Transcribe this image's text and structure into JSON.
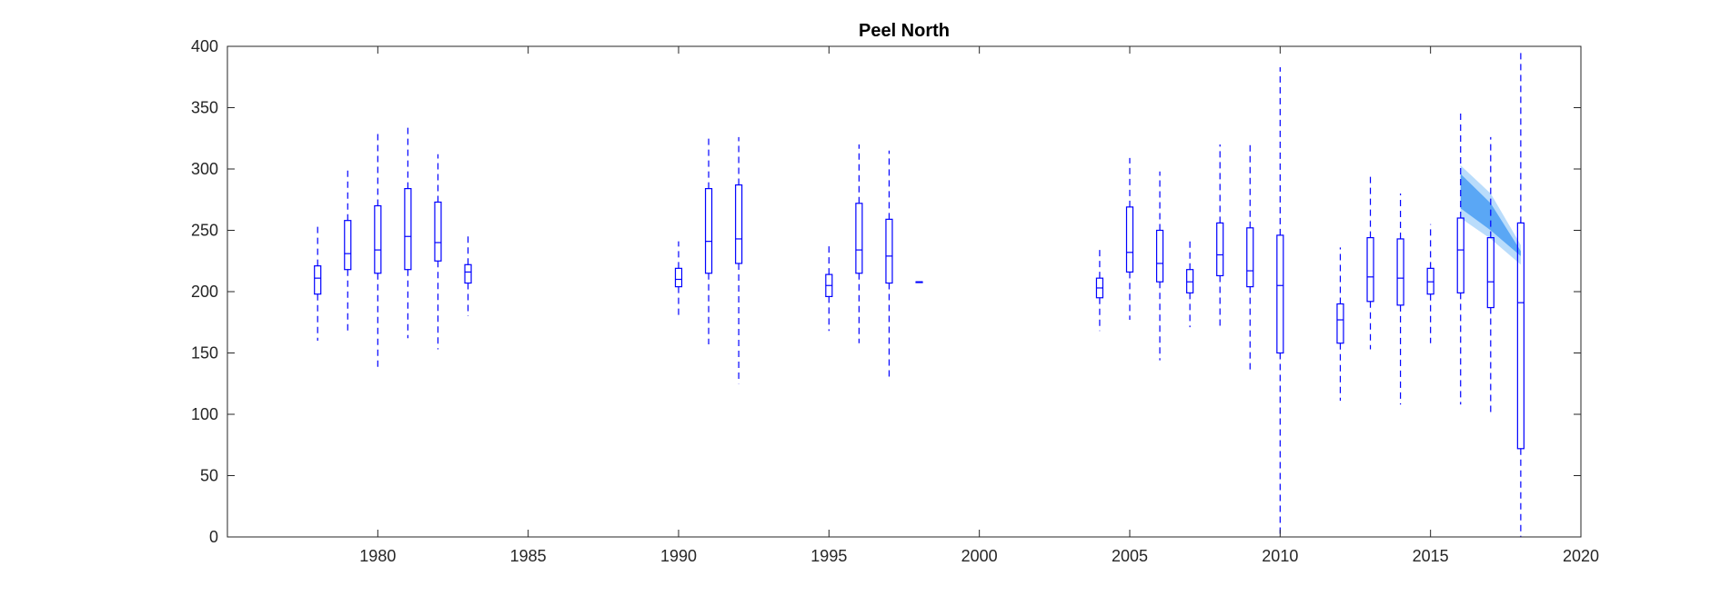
{
  "chart_data": {
    "type": "box",
    "title": "Peel North",
    "xlabel": "",
    "ylabel": "",
    "xlim": [
      1975,
      2020
    ],
    "ylim": [
      0,
      400
    ],
    "x_ticks": [
      1980,
      1985,
      1990,
      1995,
      2000,
      2005,
      2010,
      2015,
      2020
    ],
    "y_ticks": [
      0,
      50,
      100,
      150,
      200,
      250,
      300,
      350,
      400
    ],
    "grid": false,
    "colors": {
      "box": "#0000ff",
      "band_inner": "#5aa7f5",
      "band_outer": "#b9dcfb",
      "axis": "#262626"
    },
    "boxes": [
      {
        "x": 1978,
        "whisker_low": 160,
        "q1": 198,
        "median": 211,
        "q3": 221,
        "whisker_high": 253
      },
      {
        "x": 1979,
        "whisker_low": 167,
        "q1": 218,
        "median": 231,
        "q3": 258,
        "whisker_high": 300
      },
      {
        "x": 1980,
        "whisker_low": 135,
        "q1": 215,
        "median": 234,
        "q3": 270,
        "whisker_high": 330
      },
      {
        "x": 1981,
        "whisker_low": 162,
        "q1": 218,
        "median": 245,
        "q3": 284,
        "whisker_high": 335
      },
      {
        "x": 1982,
        "whisker_low": 153,
        "q1": 225,
        "median": 240,
        "q3": 273,
        "whisker_high": 312
      },
      {
        "x": 1983,
        "whisker_low": 180,
        "q1": 207,
        "median": 216,
        "q3": 222,
        "whisker_high": 245
      },
      {
        "x": 1990,
        "whisker_low": 180,
        "q1": 204,
        "median": 210,
        "q3": 219,
        "whisker_high": 241
      },
      {
        "x": 1991,
        "whisker_low": 157,
        "q1": 215,
        "median": 241,
        "q3": 284,
        "whisker_high": 328
      },
      {
        "x": 1992,
        "whisker_low": 125,
        "q1": 223,
        "median": 243,
        "q3": 287,
        "whisker_high": 326
      },
      {
        "x": 1995,
        "whisker_low": 168,
        "q1": 196,
        "median": 205,
        "q3": 214,
        "whisker_high": 240
      },
      {
        "x": 1996,
        "whisker_low": 158,
        "q1": 215,
        "median": 234,
        "q3": 272,
        "whisker_high": 320
      },
      {
        "x": 1997,
        "whisker_low": 128,
        "q1": 207,
        "median": 229,
        "q3": 259,
        "whisker_high": 315
      },
      {
        "x": 1998,
        "whisker_low": 208,
        "q1": 208,
        "median": 208,
        "q3": 208,
        "whisker_high": 208
      },
      {
        "x": 2004,
        "whisker_low": 168,
        "q1": 195,
        "median": 203,
        "q3": 211,
        "whisker_high": 236
      },
      {
        "x": 2005,
        "whisker_low": 177,
        "q1": 216,
        "median": 232,
        "q3": 269,
        "whisker_high": 309
      },
      {
        "x": 2006,
        "whisker_low": 144,
        "q1": 208,
        "median": 223,
        "q3": 250,
        "whisker_high": 298
      },
      {
        "x": 2007,
        "whisker_low": 171,
        "q1": 199,
        "median": 208,
        "q3": 218,
        "whisker_high": 242
      },
      {
        "x": 2008,
        "whisker_low": 170,
        "q1": 213,
        "median": 230,
        "q3": 256,
        "whisker_high": 320
      },
      {
        "x": 2009,
        "whisker_low": 133,
        "q1": 204,
        "median": 217,
        "q3": 252,
        "whisker_high": 322
      },
      {
        "x": 2010,
        "whisker_low": 0,
        "q1": 150,
        "median": 205,
        "q3": 246,
        "whisker_high": 383
      },
      {
        "x": 2012,
        "whisker_low": 111,
        "q1": 158,
        "median": 177,
        "q3": 190,
        "whisker_high": 236
      },
      {
        "x": 2013,
        "whisker_low": 153,
        "q1": 192,
        "median": 212,
        "q3": 244,
        "whisker_high": 295
      },
      {
        "x": 2014,
        "whisker_low": 108,
        "q1": 189,
        "median": 211,
        "q3": 243,
        "whisker_high": 280
      },
      {
        "x": 2015,
        "whisker_low": 158,
        "q1": 198,
        "median": 208,
        "q3": 219,
        "whisker_high": 255
      },
      {
        "x": 2016,
        "whisker_low": 108,
        "q1": 199,
        "median": 234,
        "q3": 260,
        "whisker_high": 347
      },
      {
        "x": 2017,
        "whisker_low": 101,
        "q1": 187,
        "median": 208,
        "q3": 244,
        "whisker_high": 326
      },
      {
        "x": 2018,
        "whisker_low": 0,
        "q1": 72,
        "median": 191,
        "q3": 256,
        "whisker_high": 395
      }
    ],
    "bands": {
      "x": [
        2016,
        2017,
        2018
      ],
      "outer_low": [
        260,
        243,
        222
      ],
      "outer_high": [
        303,
        280,
        238
      ],
      "inner_low": [
        268,
        250,
        229
      ],
      "inner_high": [
        296,
        272,
        233
      ]
    }
  }
}
